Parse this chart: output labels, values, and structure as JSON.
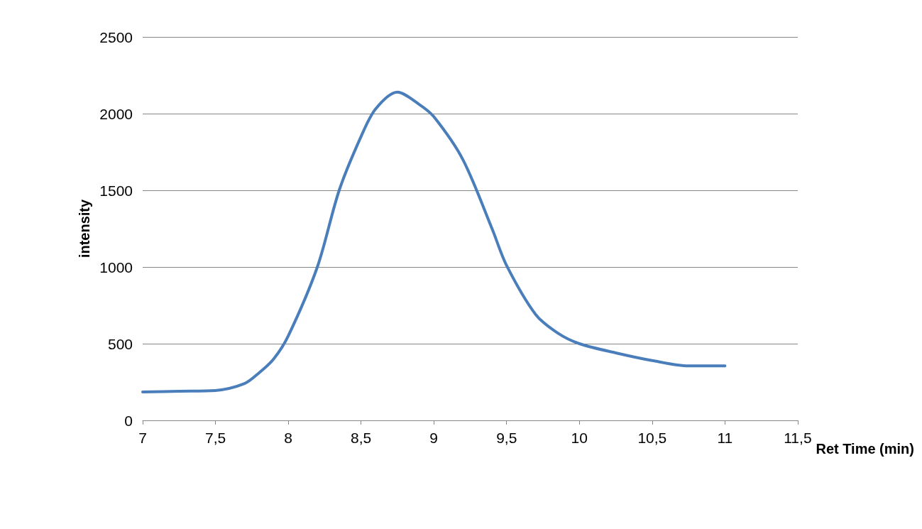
{
  "chart_data": {
    "type": "line",
    "xlabel": "Ret Time (min)",
    "ylabel": "intensity",
    "x": [
      7.0,
      7.25,
      7.5,
      7.7,
      7.8,
      7.9,
      8.0,
      8.2,
      8.35,
      8.5,
      8.6,
      8.75,
      8.9,
      9.0,
      9.2,
      9.4,
      9.5,
      9.7,
      9.85,
      10.0,
      10.25,
      10.5,
      10.75,
      11.0
    ],
    "series": [
      {
        "color": "#4a7ebb",
        "values": [
          185,
          190,
          195,
          240,
          310,
          400,
          550,
          1000,
          1500,
          1850,
          2030,
          2140,
          2060,
          1980,
          1700,
          1250,
          1010,
          690,
          570,
          500,
          440,
          390,
          355,
          355
        ]
      }
    ],
    "xlim": [
      7,
      11.5
    ],
    "xticks": [
      7,
      {
        "value": 7.5,
        "label": "7,5"
      },
      8,
      {
        "value": 8.5,
        "label": "8,5"
      },
      9,
      {
        "value": 9.5,
        "label": "9,5"
      },
      10,
      {
        "value": 10.5,
        "label": "10,5"
      },
      11,
      {
        "value": 11.5,
        "label": "11,5"
      }
    ],
    "ylim": [
      0,
      2500
    ],
    "yticks": [
      0,
      500,
      1000,
      1500,
      2000,
      2500
    ],
    "grid": "y",
    "marker": "none",
    "line_style": "solid"
  }
}
